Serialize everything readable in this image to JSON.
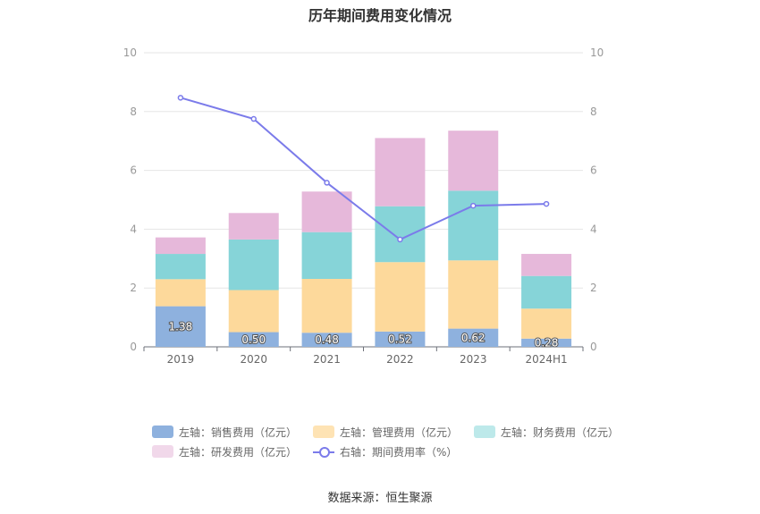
{
  "title": "历年期间费用变化情况",
  "source": "数据来源：恒生聚源",
  "colors": {
    "sales": "#8eb1de",
    "admin": "#fdd99b",
    "finance": "#86d4d8",
    "rd": "#e6b8da",
    "rate": "#7b7bea",
    "grid": "#e6e6e6"
  },
  "legend": [
    {
      "label": "左轴：销售费用（亿元）",
      "color": "#8eb1de",
      "kind": "bar"
    },
    {
      "label": "左轴：管理费用（亿元）",
      "color": "#fee3b4",
      "kind": "bar"
    },
    {
      "label": "左轴：财务费用（亿元）",
      "color": "#bde9ea",
      "kind": "bar"
    },
    {
      "label": "左轴：研发费用（亿元）",
      "color": "#f1d8ea",
      "kind": "bar"
    },
    {
      "label": "右轴：期间费用率（%）",
      "color": "#7b7bea",
      "kind": "line"
    }
  ],
  "chart_data": {
    "type": "bar",
    "title": "历年期间费用变化情况",
    "categories": [
      "2019",
      "2020",
      "2021",
      "2022",
      "2023",
      "2024H1"
    ],
    "y_left": {
      "min": 0,
      "max": 10,
      "ticks": [
        0,
        2,
        4,
        6,
        8,
        10
      ]
    },
    "y_right": {
      "min": 0,
      "max": 10,
      "ticks": [
        0,
        2,
        4,
        6,
        8,
        10
      ]
    },
    "grid": true,
    "legend_position": "bottom",
    "stacked": true,
    "series": [
      {
        "name": "左轴：销售费用（亿元）",
        "axis": "left",
        "type": "bar",
        "values": [
          1.38,
          0.5,
          0.48,
          0.52,
          0.62,
          0.28
        ],
        "labels": [
          "1.38",
          "0.50",
          "0.48",
          "0.52",
          "0.62",
          "0.28"
        ]
      },
      {
        "name": "左轴：管理费用（亿元）",
        "axis": "left",
        "type": "bar",
        "values": [
          0.92,
          1.43,
          1.83,
          2.36,
          2.32,
          1.02
        ]
      },
      {
        "name": "左轴：财务费用（亿元）",
        "axis": "left",
        "type": "bar",
        "values": [
          0.86,
          1.72,
          1.59,
          1.9,
          2.37,
          1.11
        ]
      },
      {
        "name": "左轴：研发费用（亿元）",
        "axis": "left",
        "type": "bar",
        "values": [
          0.56,
          0.9,
          1.38,
          2.32,
          2.04,
          0.75
        ]
      },
      {
        "name": "右轴：期间费用率（%）",
        "axis": "right",
        "type": "line",
        "values": [
          8.47,
          7.75,
          5.58,
          3.65,
          4.8,
          4.86
        ]
      }
    ]
  }
}
